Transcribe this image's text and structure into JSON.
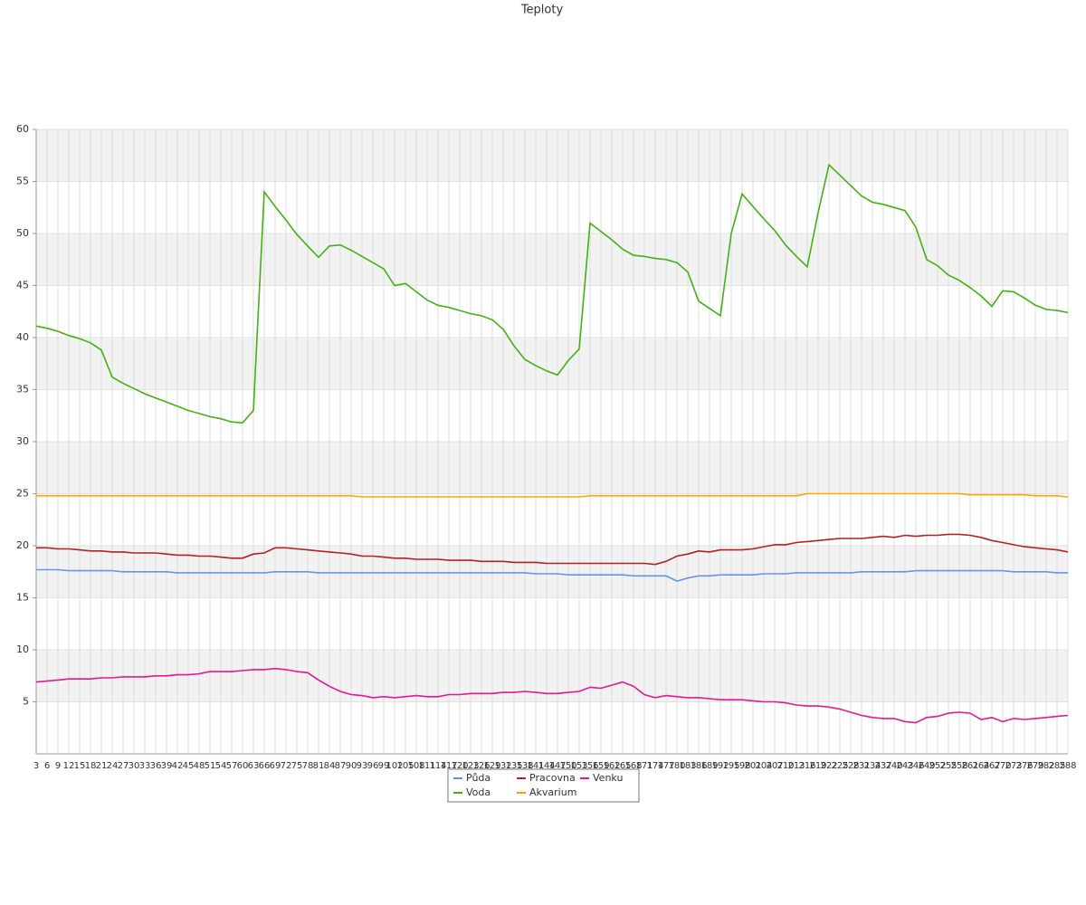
{
  "chart_data": {
    "type": "line",
    "title": "Teploty",
    "categories": [
      "3",
      "6",
      "9",
      "12",
      "15",
      "18",
      "21",
      "24",
      "27",
      "30",
      "33",
      "36",
      "39",
      "42",
      "45",
      "48",
      "51",
      "54",
      "57",
      "60",
      "63",
      "66",
      "69",
      "72",
      "75",
      "78",
      "81",
      "84",
      "87",
      "90",
      "93",
      "96",
      "99",
      "102",
      "105",
      "108",
      "111",
      "114",
      "117",
      "120",
      "123",
      "126",
      "129",
      "132",
      "135",
      "138",
      "141",
      "144",
      "147",
      "150",
      "153",
      "156",
      "159",
      "162",
      "165",
      "168",
      "171",
      "174",
      "177",
      "180",
      "183",
      "186",
      "189",
      "192",
      "195",
      "198",
      "201",
      "204",
      "207",
      "210",
      "213",
      "216",
      "219",
      "222",
      "225",
      "228",
      "231",
      "234",
      "237",
      "240",
      "243",
      "246",
      "249",
      "252",
      "255",
      "258",
      "261",
      "264",
      "267",
      "270",
      "273",
      "276",
      "279",
      "282",
      "285",
      "288"
    ],
    "series": [
      {
        "name": "Půda",
        "color": "#6495ed",
        "values": [
          17.7,
          17.7,
          17.7,
          17.6,
          17.6,
          17.6,
          17.6,
          17.6,
          17.5,
          17.5,
          17.5,
          17.5,
          17.5,
          17.4,
          17.4,
          17.4,
          17.4,
          17.4,
          17.4,
          17.4,
          17.4,
          17.4,
          17.5,
          17.5,
          17.5,
          17.5,
          17.4,
          17.4,
          17.4,
          17.4,
          17.4,
          17.4,
          17.4,
          17.4,
          17.4,
          17.4,
          17.4,
          17.4,
          17.4,
          17.4,
          17.4,
          17.4,
          17.4,
          17.4,
          17.4,
          17.4,
          17.3,
          17.3,
          17.3,
          17.2,
          17.2,
          17.2,
          17.2,
          17.2,
          17.2,
          17.1,
          17.1,
          17.1,
          17.1,
          16.6,
          16.9,
          17.1,
          17.1,
          17.2,
          17.2,
          17.2,
          17.2,
          17.3,
          17.3,
          17.3,
          17.4,
          17.4,
          17.4,
          17.4,
          17.4,
          17.4,
          17.5,
          17.5,
          17.5,
          17.5,
          17.5,
          17.6,
          17.6,
          17.6,
          17.6,
          17.6,
          17.6,
          17.6,
          17.6,
          17.6,
          17.5,
          17.5,
          17.5,
          17.5,
          17.4,
          17.4
        ]
      },
      {
        "name": "Voda",
        "color": "#44b012",
        "values": [
          41.1,
          40.9,
          40.6,
          40.2,
          39.9,
          39.5,
          38.8,
          36.2,
          35.6,
          35.1,
          34.6,
          34.2,
          33.8,
          33.4,
          33.0,
          32.7,
          32.4,
          32.2,
          31.9,
          31.8,
          33.0,
          54.0,
          52.6,
          51.3,
          49.9,
          48.8,
          47.7,
          48.8,
          48.9,
          48.4,
          47.8,
          47.2,
          46.6,
          45.0,
          45.2,
          44.4,
          43.6,
          43.1,
          42.9,
          42.6,
          42.3,
          42.1,
          41.7,
          40.8,
          39.2,
          37.9,
          37.3,
          36.8,
          36.4,
          37.8,
          38.9,
          51.0,
          50.2,
          49.4,
          48.5,
          47.9,
          47.8,
          47.6,
          47.5,
          47.2,
          46.3,
          43.5,
          42.8,
          42.1,
          50.0,
          53.8,
          52.6,
          51.4,
          50.3,
          48.9,
          47.8,
          46.8,
          52.0,
          56.6,
          55.6,
          54.6,
          53.6,
          53.0,
          52.8,
          52.5,
          52.2,
          50.6,
          47.5,
          46.9,
          46.0,
          45.5,
          44.8,
          44.0,
          43.0,
          44.5,
          44.4,
          43.8,
          43.1,
          42.7,
          42.6,
          42.4
        ]
      },
      {
        "name": "Pracovna",
        "color": "#b22222",
        "values": [
          19.8,
          19.8,
          19.7,
          19.7,
          19.6,
          19.5,
          19.5,
          19.4,
          19.4,
          19.3,
          19.3,
          19.3,
          19.2,
          19.1,
          19.1,
          19.0,
          19.0,
          18.9,
          18.8,
          18.8,
          19.2,
          19.3,
          19.8,
          19.8,
          19.7,
          19.6,
          19.5,
          19.4,
          19.3,
          19.2,
          19.0,
          19.0,
          18.9,
          18.8,
          18.8,
          18.7,
          18.7,
          18.7,
          18.6,
          18.6,
          18.6,
          18.5,
          18.5,
          18.5,
          18.4,
          18.4,
          18.4,
          18.3,
          18.3,
          18.3,
          18.3,
          18.3,
          18.3,
          18.3,
          18.3,
          18.3,
          18.3,
          18.2,
          18.5,
          19.0,
          19.2,
          19.5,
          19.4,
          19.6,
          19.6,
          19.6,
          19.7,
          19.9,
          20.1,
          20.1,
          20.3,
          20.4,
          20.5,
          20.6,
          20.7,
          20.7,
          20.7,
          20.8,
          20.9,
          20.8,
          21.0,
          20.9,
          21.0,
          21.0,
          21.1,
          21.1,
          21.0,
          20.8,
          20.5,
          20.3,
          20.1,
          19.9,
          19.8,
          19.7,
          19.6,
          19.4
        ]
      },
      {
        "name": "Akvarium",
        "color": "#ffa500",
        "values": [
          24.8,
          24.8,
          24.8,
          24.8,
          24.8,
          24.8,
          24.8,
          24.8,
          24.8,
          24.8,
          24.8,
          24.8,
          24.8,
          24.8,
          24.8,
          24.8,
          24.8,
          24.8,
          24.8,
          24.8,
          24.8,
          24.8,
          24.8,
          24.8,
          24.8,
          24.8,
          24.8,
          24.8,
          24.8,
          24.8,
          24.7,
          24.7,
          24.7,
          24.7,
          24.7,
          24.7,
          24.7,
          24.7,
          24.7,
          24.7,
          24.7,
          24.7,
          24.7,
          24.7,
          24.7,
          24.7,
          24.7,
          24.7,
          24.7,
          24.7,
          24.7,
          24.8,
          24.8,
          24.8,
          24.8,
          24.8,
          24.8,
          24.8,
          24.8,
          24.8,
          24.8,
          24.8,
          24.8,
          24.8,
          24.8,
          24.8,
          24.8,
          24.8,
          24.8,
          24.8,
          24.8,
          25.0,
          25.0,
          25.0,
          25.0,
          25.0,
          25.0,
          25.0,
          25.0,
          25.0,
          25.0,
          25.0,
          25.0,
          25.0,
          25.0,
          25.0,
          24.9,
          24.9,
          24.9,
          24.9,
          24.9,
          24.9,
          24.8,
          24.8,
          24.8,
          24.7
        ]
      },
      {
        "name": "Venku",
        "color": "#e8168f",
        "values": [
          6.9,
          7.0,
          7.1,
          7.2,
          7.2,
          7.2,
          7.3,
          7.3,
          7.4,
          7.4,
          7.4,
          7.5,
          7.5,
          7.6,
          7.6,
          7.7,
          7.9,
          7.9,
          7.9,
          8.0,
          8.1,
          8.1,
          8.2,
          8.1,
          7.9,
          7.8,
          7.1,
          6.5,
          6.0,
          5.7,
          5.6,
          5.4,
          5.5,
          5.4,
          5.5,
          5.6,
          5.5,
          5.5,
          5.7,
          5.7,
          5.8,
          5.8,
          5.8,
          5.9,
          5.9,
          6.0,
          5.9,
          5.8,
          5.8,
          5.9,
          6.0,
          6.4,
          6.3,
          6.6,
          6.9,
          6.5,
          5.7,
          5.4,
          5.6,
          5.5,
          5.4,
          5.4,
          5.3,
          5.2,
          5.2,
          5.2,
          5.1,
          5.0,
          5.0,
          4.9,
          4.7,
          4.6,
          4.6,
          4.5,
          4.3,
          4.0,
          3.7,
          3.5,
          3.4,
          3.4,
          3.1,
          3.0,
          3.5,
          3.6,
          3.9,
          4.0,
          3.9,
          3.3,
          3.5,
          3.1,
          3.4,
          3.3,
          3.4,
          3.5,
          3.6,
          3.7
        ]
      }
    ],
    "ylim": [
      0,
      60
    ],
    "yticks": [
      5,
      10,
      15,
      20,
      25,
      30,
      35,
      40,
      45,
      50,
      55,
      60
    ],
    "grid": true,
    "legend": "bottom"
  }
}
